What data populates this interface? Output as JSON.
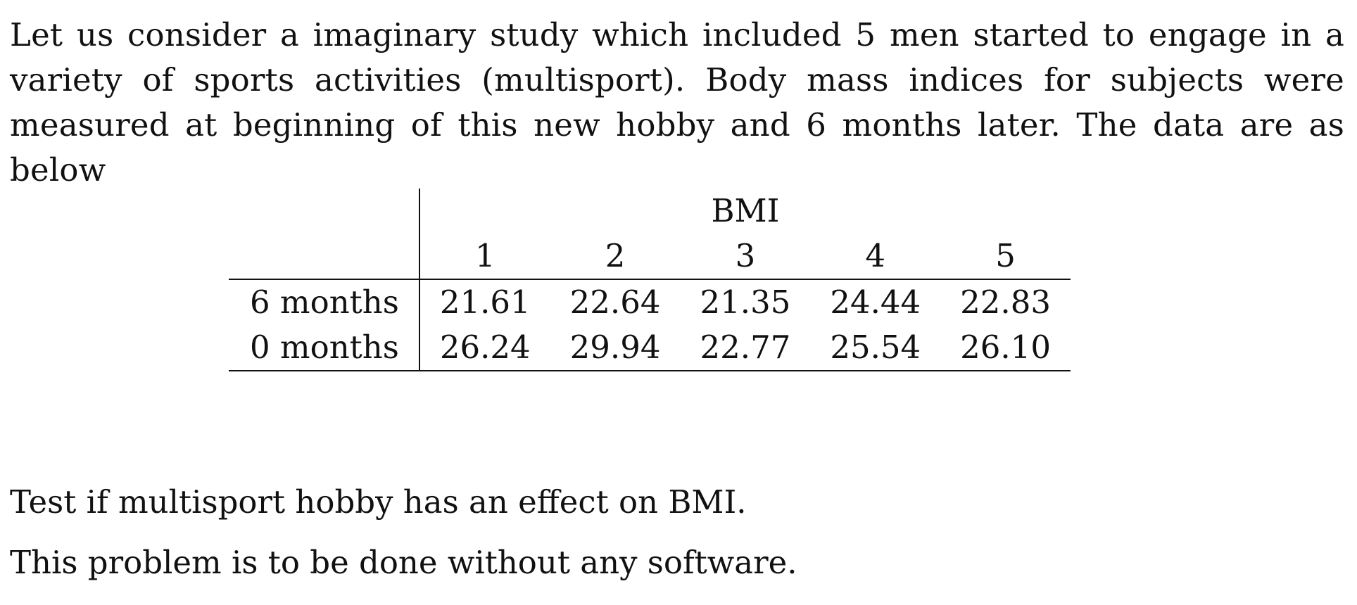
{
  "intro_text": "Let us consider a imaginary study which included 5 men started to engage in a variety of sports activities (multisport). Body mass indices for subjects were measured at beginning of this new hobby and 6 months later. The data are as below",
  "table": {
    "group_header": "BMI",
    "columns": [
      "1",
      "2",
      "3",
      "4",
      "5"
    ],
    "rows": [
      {
        "label": "6 months",
        "values": [
          "21.61",
          "22.64",
          "21.35",
          "24.44",
          "22.83"
        ]
      },
      {
        "label": "0 months",
        "values": [
          "26.24",
          "29.94",
          "22.77",
          "25.54",
          "26.10"
        ]
      }
    ]
  },
  "question_1": "Test if multisport hobby has an effect on BMI.",
  "question_2": "This problem is to be done without any software."
}
